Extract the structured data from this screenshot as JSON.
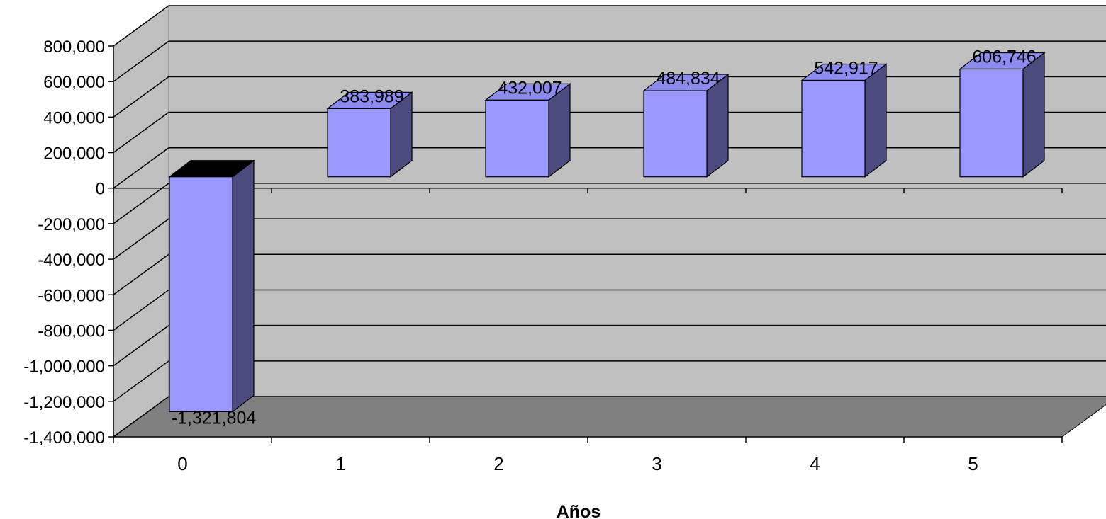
{
  "chart_data": {
    "type": "bar",
    "style": "3d-column",
    "categories": [
      "0",
      "1",
      "2",
      "3",
      "4",
      "5"
    ],
    "values": [
      -1321804,
      383989,
      432007,
      484834,
      542917,
      606746
    ],
    "data_labels": [
      "-1,321,804",
      "383,989",
      "432,007",
      "484,834",
      "542,917",
      "606,746"
    ],
    "xlabel": "Años",
    "ylabel": "",
    "ylim": [
      -1400000,
      800000
    ],
    "y_ticks": [
      800000,
      600000,
      400000,
      200000,
      0,
      -200000,
      -400000,
      -600000,
      -800000,
      -1000000,
      -1200000,
      -1400000
    ],
    "y_tick_labels": [
      "800,000",
      "600,000",
      "400,000",
      "200,000",
      "0",
      "-200,000",
      "-400,000",
      "-600,000",
      "-800,000",
      "-1,000,000",
      "-1,200,000",
      "-1,400,000"
    ],
    "grid": true,
    "legend": "none",
    "colors": {
      "bar_front": "#9999ff",
      "bar_side": "#4b4b80",
      "bar_top": "#8c8cf0",
      "bar_top_negative": "#000000",
      "back_wall": "#c0c0c0",
      "side_wall": "#c0c0c0",
      "floor": "#808080",
      "gridline": "#000000"
    }
  }
}
